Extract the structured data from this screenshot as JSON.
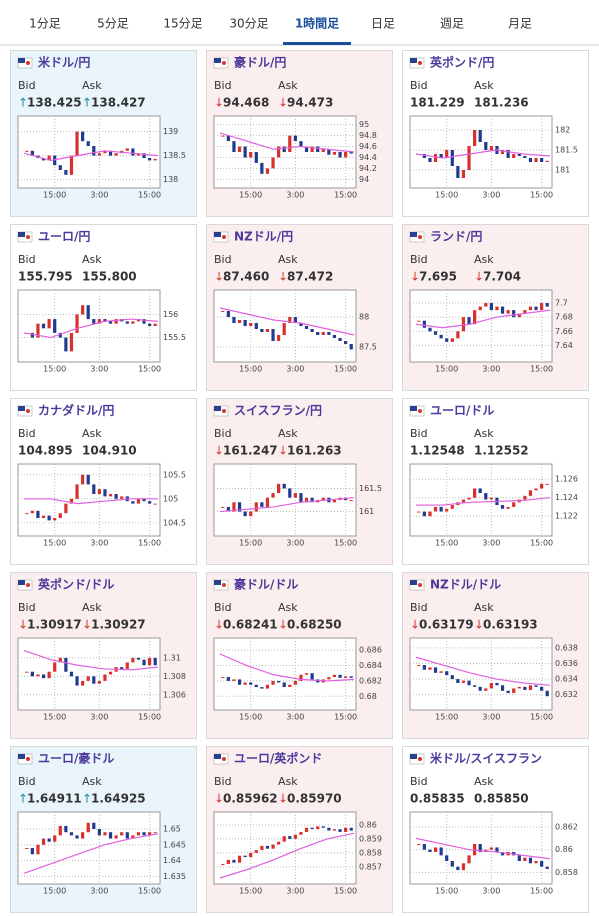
{
  "tabs": [
    "1分足",
    "5分足",
    "15分足",
    "30分足",
    "1時間足",
    "日足",
    "週足",
    "月足"
  ],
  "active_tab": 4,
  "labels": {
    "bid": "Bid",
    "ask": "Ask"
  },
  "time_ticks": [
    {
      "value": 5,
      "label": "15:00"
    },
    {
      "value": 13,
      "label": "3:00"
    },
    {
      "value": 22,
      "label": "15:00"
    }
  ],
  "cards": [
    {
      "name": "米ドル/円",
      "trend": "up",
      "arrow": "↑",
      "bid": "138.425",
      "ask": "138.427",
      "chart": {
        "ylim": [
          137.95,
          139.2
        ],
        "yticks": [
          138,
          138.5,
          139
        ],
        "closes": [
          138.6,
          138.5,
          138.45,
          138.4,
          138.5,
          138.3,
          138.2,
          138.1,
          138.5,
          139.0,
          138.8,
          138.7,
          138.5,
          138.55,
          138.6,
          138.5,
          138.55,
          138.6,
          138.65,
          138.5,
          138.55,
          138.45,
          138.4,
          138.43
        ],
        "ma": [
          138.55,
          138.4,
          138.5,
          138.6,
          138.55,
          138.5
        ]
      }
    },
    {
      "name": "豪ドル/円",
      "trend": "down",
      "arrow": "↓",
      "bid": "94.468",
      "ask": "94.473",
      "chart": {
        "ylim": [
          93.95,
          95.05
        ],
        "yticks": [
          94,
          94.2,
          94.4,
          94.6,
          94.8,
          95
        ],
        "closes": [
          94.8,
          94.7,
          94.5,
          94.6,
          94.4,
          94.5,
          94.3,
          94.1,
          94.2,
          94.4,
          94.6,
          94.5,
          94.8,
          94.7,
          94.6,
          94.5,
          94.6,
          94.5,
          94.55,
          94.45,
          94.5,
          94.4,
          94.5,
          94.47
        ],
        "ma": [
          94.85,
          94.7,
          94.55,
          94.6,
          94.55,
          94.5
        ]
      }
    },
    {
      "name": "英ポンド/円",
      "trend": "flat",
      "bid": "181.229",
      "ask": "181.236",
      "chart": {
        "ylim": [
          180.7,
          182.2
        ],
        "yticks": [
          181,
          181.5,
          182
        ],
        "closes": [
          181.4,
          181.3,
          181.2,
          181.4,
          181.3,
          181.5,
          181.1,
          180.8,
          181.0,
          181.6,
          182.0,
          181.7,
          181.5,
          181.6,
          181.4,
          181.5,
          181.3,
          181.4,
          181.35,
          181.3,
          181.2,
          181.3,
          181.2,
          181.23
        ],
        "ma": [
          181.4,
          181.3,
          181.4,
          181.5,
          181.4,
          181.35
        ]
      }
    },
    {
      "name": "ユーロ/円",
      "trend": "flat",
      "bid": "155.795",
      "ask": "155.800",
      "chart": {
        "ylim": [
          155.1,
          156.4
        ],
        "yticks": [
          155.5,
          156
        ],
        "closes": [
          155.6,
          155.5,
          155.8,
          155.7,
          155.9,
          155.6,
          155.5,
          155.2,
          155.6,
          156.0,
          156.2,
          155.9,
          155.8,
          155.9,
          155.85,
          155.8,
          155.9,
          155.85,
          155.8,
          155.85,
          155.9,
          155.8,
          155.75,
          155.8
        ],
        "ma": [
          155.6,
          155.5,
          155.7,
          155.85,
          155.9,
          155.85
        ]
      }
    },
    {
      "name": "NZドル/円",
      "trend": "down",
      "arrow": "↓",
      "bid": "87.460",
      "ask": "87.472",
      "chart": {
        "ylim": [
          87.35,
          88.35
        ],
        "yticks": [
          87.5,
          88
        ],
        "closes": [
          88.1,
          88.0,
          87.9,
          87.95,
          87.85,
          87.9,
          87.8,
          87.75,
          87.8,
          87.6,
          87.7,
          87.9,
          88.0,
          87.9,
          87.85,
          87.8,
          87.75,
          87.7,
          87.75,
          87.7,
          87.65,
          87.6,
          87.55,
          87.46
        ],
        "ma": [
          88.15,
          88.05,
          87.95,
          87.9,
          87.8,
          87.7
        ]
      }
    },
    {
      "name": "ランド/円",
      "trend": "down",
      "arrow": "↓",
      "bid": "7.695",
      "ask": "7.704",
      "chart": {
        "ylim": [
          7.625,
          7.71
        ],
        "yticks": [
          7.64,
          7.66,
          7.68,
          7.7
        ],
        "closes": [
          7.675,
          7.665,
          7.66,
          7.655,
          7.65,
          7.645,
          7.65,
          7.66,
          7.68,
          7.67,
          7.69,
          7.695,
          7.7,
          7.69,
          7.695,
          7.685,
          7.69,
          7.68,
          7.685,
          7.69,
          7.695,
          7.69,
          7.7,
          7.695
        ],
        "ma": [
          7.67,
          7.665,
          7.67,
          7.68,
          7.685,
          7.69
        ]
      }
    },
    {
      "name": "カナダドル/円",
      "trend": "flat",
      "bid": "104.895",
      "ask": "104.910",
      "chart": {
        "ylim": [
          104.35,
          105.6
        ],
        "yticks": [
          104.5,
          105,
          105.5
        ],
        "closes": [
          104.7,
          104.75,
          104.6,
          104.65,
          104.55,
          104.6,
          104.7,
          104.9,
          105.0,
          105.3,
          105.5,
          105.3,
          105.1,
          105.2,
          105.05,
          105.1,
          105.0,
          105.05,
          104.95,
          104.9,
          105.0,
          104.95,
          104.9,
          104.9
        ],
        "ma": [
          105.0,
          105.0,
          104.9,
          104.95,
          105.0,
          105.0
        ]
      }
    },
    {
      "name": "スイスフラン/円",
      "trend": "down",
      "arrow": "↓",
      "bid": "161.247",
      "ask": "161.263",
      "chart": {
        "ylim": [
          160.6,
          161.9
        ],
        "yticks": [
          161,
          161.5
        ],
        "closes": [
          161.1,
          161.0,
          161.2,
          161.0,
          160.9,
          161.0,
          161.2,
          161.1,
          161.3,
          161.4,
          161.6,
          161.5,
          161.3,
          161.4,
          161.2,
          161.3,
          161.2,
          161.25,
          161.3,
          161.2,
          161.25,
          161.3,
          161.25,
          161.25
        ],
        "ma": [
          161.0,
          161.05,
          161.1,
          161.2,
          161.25,
          161.3
        ]
      }
    },
    {
      "name": "ユーロ/ドル",
      "trend": "flat",
      "bid": "1.12548",
      "ask": "1.12552",
      "chart": {
        "ylim": [
          1.1205,
          1.127
        ],
        "yticks": [
          1.122,
          1.124,
          1.126
        ],
        "closes": [
          1.1225,
          1.122,
          1.1225,
          1.123,
          1.1225,
          1.1228,
          1.1232,
          1.1235,
          1.1238,
          1.124,
          1.125,
          1.1245,
          1.1238,
          1.124,
          1.1232,
          1.1228,
          1.123,
          1.1235,
          1.1238,
          1.1242,
          1.1248,
          1.125,
          1.1255,
          1.1255
        ],
        "ma": [
          1.1232,
          1.1232,
          1.1235,
          1.1236,
          1.1237,
          1.124
        ]
      }
    },
    {
      "name": "英ポンド/ドル",
      "trend": "down",
      "arrow": "↓",
      "bid": "1.30917",
      "ask": "1.30927",
      "chart": {
        "ylim": [
          1.305,
          1.3115
        ],
        "yticks": [
          1.306,
          1.308,
          1.31
        ],
        "closes": [
          1.3085,
          1.308,
          1.3082,
          1.3078,
          1.3085,
          1.3095,
          1.31,
          1.3085,
          1.308,
          1.307,
          1.3075,
          1.308,
          1.3072,
          1.3075,
          1.3082,
          1.3085,
          1.309,
          1.3088,
          1.3095,
          1.31,
          1.3098,
          1.3092,
          1.31,
          1.3092
        ],
        "ma": [
          1.3108,
          1.3098,
          1.3092,
          1.3088,
          1.3087,
          1.309
        ]
      }
    },
    {
      "name": "豪ドル/ドル",
      "trend": "down",
      "arrow": "↓",
      "bid": "0.68241",
      "ask": "0.68250",
      "chart": {
        "ylim": [
          0.679,
          0.6868
        ],
        "yticks": [
          0.68,
          0.682,
          0.684,
          0.686
        ],
        "closes": [
          0.6825,
          0.682,
          0.6822,
          0.6815,
          0.6818,
          0.6815,
          0.6812,
          0.681,
          0.6815,
          0.682,
          0.6818,
          0.6812,
          0.6815,
          0.682,
          0.6828,
          0.683,
          0.6822,
          0.6818,
          0.6822,
          0.6825,
          0.6828,
          0.6824,
          0.6826,
          0.6824
        ],
        "ma": [
          0.6855,
          0.684,
          0.6828,
          0.6822,
          0.682,
          0.6822
        ]
      }
    },
    {
      "name": "NZドル/ドル",
      "trend": "down",
      "arrow": "↓",
      "bid": "0.63179",
      "ask": "0.63193",
      "chart": {
        "ylim": [
          0.6308,
          0.6385
        ],
        "yticks": [
          0.632,
          0.634,
          0.636,
          0.638
        ],
        "closes": [
          0.6358,
          0.6352,
          0.6355,
          0.6348,
          0.635,
          0.6345,
          0.634,
          0.6335,
          0.6338,
          0.6332,
          0.633,
          0.6325,
          0.6328,
          0.6335,
          0.6332,
          0.6325,
          0.6322,
          0.6328,
          0.633,
          0.6326,
          0.6332,
          0.633,
          0.6325,
          0.6318
        ],
        "ma": [
          0.6368,
          0.6358,
          0.6348,
          0.634,
          0.6335,
          0.6332
        ]
      }
    },
    {
      "name": "ユーロ/豪ドル",
      "trend": "up",
      "arrow": "↑",
      "bid": "1.64911",
      "ask": "1.64925",
      "chart": {
        "ylim": [
          1.6345,
          1.6535
        ],
        "yticks": [
          1.635,
          1.64,
          1.645,
          1.65
        ],
        "closes": [
          1.644,
          1.642,
          1.645,
          1.647,
          1.646,
          1.648,
          1.651,
          1.649,
          1.648,
          1.647,
          1.649,
          1.652,
          1.65,
          1.648,
          1.649,
          1.647,
          1.648,
          1.649,
          1.647,
          1.648,
          1.649,
          1.648,
          1.649,
          1.649
        ],
        "ma": [
          1.636,
          1.639,
          1.642,
          1.645,
          1.647,
          1.6485
        ]
      }
    },
    {
      "name": "ユーロ/英ポンド",
      "trend": "down",
      "arrow": "↓",
      "bid": "0.85962",
      "ask": "0.85970",
      "chart": {
        "ylim": [
          0.8562,
          0.8605
        ],
        "yticks": [
          0.857,
          0.858,
          0.859,
          0.86
        ],
        "closes": [
          0.8572,
          0.8575,
          0.8573,
          0.8578,
          0.8577,
          0.858,
          0.8582,
          0.8585,
          0.8583,
          0.8586,
          0.8588,
          0.8592,
          0.859,
          0.8593,
          0.8595,
          0.8598,
          0.8597,
          0.8599,
          0.8598,
          0.8596,
          0.8597,
          0.8595,
          0.8598,
          0.8596
        ],
        "ma": [
          0.8562,
          0.8568,
          0.8575,
          0.8583,
          0.859,
          0.8594
        ]
      }
    },
    {
      "name": "米ドル/スイスフラン",
      "trend": "flat",
      "bid": "0.85835",
      "ask": "0.85850",
      "chart": {
        "ylim": [
          0.8575,
          0.8628
        ],
        "yticks": [
          0.858,
          0.86,
          0.862
        ],
        "closes": [
          0.8605,
          0.86,
          0.8598,
          0.8602,
          0.8595,
          0.859,
          0.8585,
          0.8582,
          0.8588,
          0.8595,
          0.8605,
          0.8598,
          0.86,
          0.8602,
          0.8598,
          0.8595,
          0.8598,
          0.8595,
          0.859,
          0.8593,
          0.8588,
          0.859,
          0.8585,
          0.8583
        ],
        "ma": [
          0.861,
          0.8605,
          0.86,
          0.8598,
          0.8595,
          0.8592
        ]
      }
    }
  ]
}
